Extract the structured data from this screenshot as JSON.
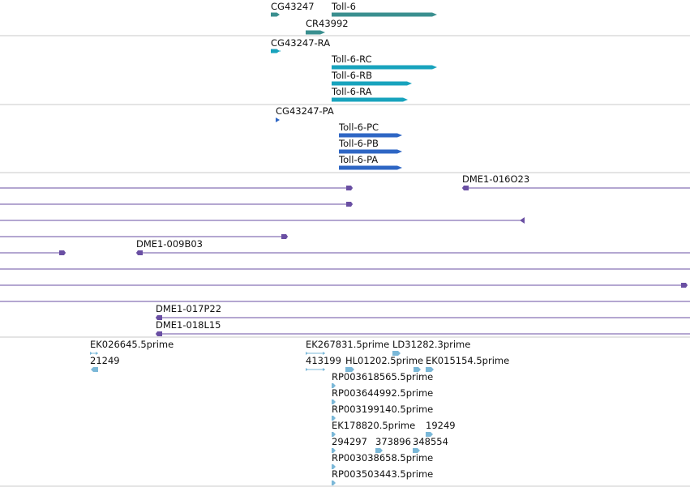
{
  "colors": {
    "gene": "#3a8f8f",
    "transcript": "#18a3bd",
    "protein": "#2e66c4",
    "clone": "#6a4fa3",
    "est": "#7bb8d8",
    "separator": "#c8c8c8",
    "text": "#111111"
  },
  "tracks": {
    "gene": {
      "items": [
        {
          "label": "CG43247",
          "dir": "plus"
        },
        {
          "label": "Toll-6",
          "dir": "plus"
        },
        {
          "label": "CR43992",
          "dir": "plus"
        }
      ]
    },
    "transcript": {
      "items": [
        {
          "label": "CG43247-RA",
          "dir": "plus"
        },
        {
          "label": "Toll-6-RC",
          "dir": "plus"
        },
        {
          "label": "Toll-6-RB",
          "dir": "plus"
        },
        {
          "label": "Toll-6-RA",
          "dir": "plus"
        }
      ]
    },
    "protein": {
      "items": [
        {
          "label": "CG43247-PA",
          "dir": "plus"
        },
        {
          "label": "Toll-6-PC",
          "dir": "plus"
        },
        {
          "label": "Toll-6-PB",
          "dir": "plus"
        },
        {
          "label": "Toll-6-PA",
          "dir": "plus"
        }
      ]
    },
    "clone": {
      "labels": [
        "DME1-016O23",
        "DME1-009B03",
        "DME1-017P22",
        "DME1-018L15"
      ]
    },
    "est": {
      "labels": [
        "EK026645.5prime",
        "21249",
        "EK267831.5prime",
        "LD31282.3prime",
        "413199",
        "HL01202.5prime",
        "EK015154.5prime",
        "RP003618565.5prime",
        "RP003644992.5prime",
        "RP003199140.5prime",
        "EK178820.5prime",
        "19249",
        "294297",
        "373896",
        "348554",
        "RP003038658.5prime",
        "RP003503443.5prime"
      ]
    }
  }
}
